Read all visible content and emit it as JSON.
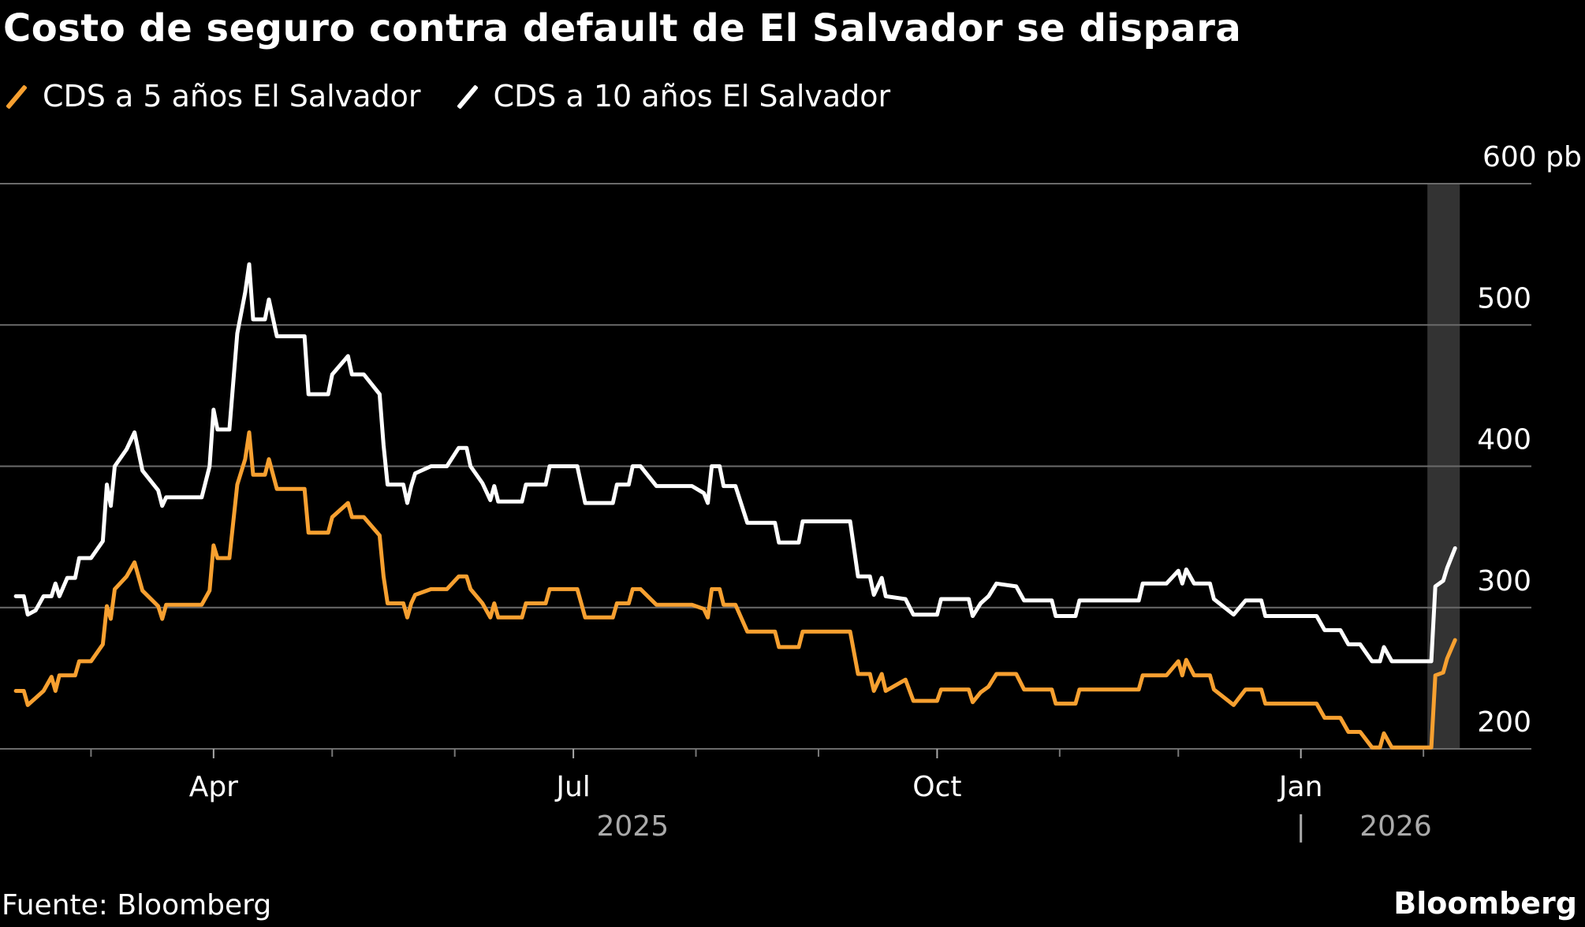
{
  "title": "Costo de seguro contra default de El Salvador se dispara",
  "legend": [
    {
      "label": "CDS a 5 años El Salvador",
      "color": "#f7a030"
    },
    {
      "label": "CDS a 10 años El Salvador",
      "color": "#ffffff"
    }
  ],
  "source": "Fuente: Bloomberg",
  "brand": "Bloomberg",
  "chart_data": {
    "type": "line",
    "title": "Costo de seguro contra default de El Salvador se dispara",
    "y_unit": "pb",
    "ylim": [
      200,
      600
    ],
    "y_ticks": [
      200,
      300,
      400,
      500,
      600
    ],
    "y_tick_labels": [
      "200",
      "300",
      "400",
      "500",
      "600 pb"
    ],
    "y_axis_position": "right",
    "grid": true,
    "legend_position": "top-left",
    "x_range": [
      "2025-02-10",
      "2026-02-09"
    ],
    "x_major_ticks": [
      {
        "date": "2025-04-01",
        "label": "Apr"
      },
      {
        "date": "2025-07-01",
        "label": "Jul"
      },
      {
        "date": "2025-10-01",
        "label": "Oct"
      },
      {
        "date": "2026-01-01",
        "label": "Jan"
      }
    ],
    "x_minor_ticks": [
      "2025-03-01",
      "2025-05-01",
      "2025-06-01",
      "2025-08-01",
      "2025-09-01",
      "2025-11-01",
      "2025-12-01",
      "2026-02-01"
    ],
    "year_labels": [
      {
        "date": "2025-07-16",
        "label": "2025"
      },
      {
        "date": "2026-01-25",
        "label": "2026",
        "separator": "|"
      }
    ],
    "highlight_range": [
      "2026-02-02",
      "2026-02-09"
    ],
    "highlight_color": "#333333",
    "x": [
      "2025-02-10",
      "2025-02-12",
      "2025-02-13",
      "2025-02-15",
      "2025-02-17",
      "2025-02-19",
      "2025-02-20",
      "2025-02-21",
      "2025-02-23",
      "2025-02-25",
      "2025-02-26",
      "2025-03-01",
      "2025-03-04",
      "2025-03-05",
      "2025-03-06",
      "2025-03-07",
      "2025-03-10",
      "2025-03-12",
      "2025-03-14",
      "2025-03-18",
      "2025-03-19",
      "2025-03-20",
      "2025-03-29",
      "2025-03-31",
      "2025-04-01",
      "2025-04-02",
      "2025-04-05",
      "2025-04-07",
      "2025-04-09",
      "2025-04-10",
      "2025-04-11",
      "2025-04-14",
      "2025-04-15",
      "2025-04-17",
      "2025-04-24",
      "2025-04-25",
      "2025-04-30",
      "2025-05-01",
      "2025-05-05",
      "2025-05-06",
      "2025-05-09",
      "2025-05-13",
      "2025-05-14",
      "2025-05-15",
      "2025-05-19",
      "2025-05-20",
      "2025-05-21",
      "2025-05-22",
      "2025-05-26",
      "2025-05-30",
      "2025-06-02",
      "2025-06-04",
      "2025-06-05",
      "2025-06-08",
      "2025-06-10",
      "2025-06-11",
      "2025-06-12",
      "2025-06-18",
      "2025-06-19",
      "2025-06-24",
      "2025-06-25",
      "2025-06-30",
      "2025-07-02",
      "2025-07-04",
      "2025-07-11",
      "2025-07-12",
      "2025-07-15",
      "2025-07-16",
      "2025-07-18",
      "2025-07-22",
      "2025-07-31",
      "2025-08-03",
      "2025-08-04",
      "2025-08-05",
      "2025-08-07",
      "2025-08-08",
      "2025-08-11",
      "2025-08-14",
      "2025-08-21",
      "2025-08-22",
      "2025-08-27",
      "2025-08-28",
      "2025-09-09",
      "2025-09-11",
      "2025-09-14",
      "2025-09-15",
      "2025-09-17",
      "2025-09-18",
      "2025-09-23",
      "2025-09-25",
      "2025-10-01",
      "2025-10-02",
      "2025-10-09",
      "2025-10-10",
      "2025-10-12",
      "2025-10-14",
      "2025-10-16",
      "2025-10-21",
      "2025-10-23",
      "2025-10-30",
      "2025-10-31",
      "2025-11-05",
      "2025-11-06",
      "2025-11-21",
      "2025-11-22",
      "2025-11-28",
      "2025-12-01",
      "2025-12-02",
      "2025-12-03",
      "2025-12-05",
      "2025-12-09",
      "2025-12-10",
      "2025-12-15",
      "2025-12-18",
      "2025-12-22",
      "2025-12-23",
      "2026-01-05",
      "2026-01-07",
      "2026-01-11",
      "2026-01-13",
      "2026-01-16",
      "2026-01-19",
      "2026-01-21",
      "2026-01-22",
      "2026-01-24",
      "2026-02-03",
      "2026-02-04",
      "2026-02-06",
      "2026-02-07",
      "2026-02-09"
    ],
    "series": [
      {
        "name": "CDS a 5 años El Salvador",
        "color": "#f7a030",
        "values": [
          241,
          241,
          231,
          236,
          241,
          251,
          241,
          252,
          252,
          252,
          262,
          262,
          274,
          301,
          292,
          313,
          322,
          332,
          312,
          301,
          292,
          302,
          302,
          312,
          344,
          335,
          335,
          387,
          405,
          424,
          394,
          394,
          405,
          384,
          384,
          353,
          353,
          364,
          374,
          364,
          364,
          351,
          322,
          303,
          303,
          293,
          303,
          309,
          313,
          313,
          322,
          322,
          313,
          303,
          293,
          303,
          293,
          293,
          303,
          303,
          313,
          313,
          313,
          293,
          293,
          303,
          303,
          313,
          313,
          302,
          302,
          299,
          293,
          313,
          313,
          302,
          302,
          283,
          283,
          272,
          272,
          283,
          283,
          253,
          253,
          241,
          253,
          241,
          249,
          234,
          234,
          242,
          242,
          233,
          240,
          244,
          253,
          253,
          242,
          242,
          232,
          232,
          242,
          242,
          252,
          252,
          262,
          252,
          263,
          252,
          252,
          242,
          231,
          242,
          242,
          232,
          232,
          222,
          222,
          212,
          212,
          201,
          201,
          211,
          201,
          201,
          252,
          254,
          264,
          277
        ]
      },
      {
        "name": "CDS a 10 años El Salvador",
        "color": "#ffffff",
        "values": [
          308,
          308,
          295,
          298,
          308,
          308,
          317,
          308,
          321,
          321,
          335,
          335,
          347,
          387,
          372,
          400,
          412,
          424,
          397,
          383,
          372,
          378,
          378,
          400,
          440,
          426,
          426,
          494,
          523,
          543,
          504,
          504,
          518,
          492,
          492,
          451,
          451,
          465,
          478,
          465,
          465,
          451,
          415,
          387,
          387,
          374,
          386,
          395,
          400,
          400,
          413,
          413,
          400,
          388,
          376,
          386,
          375,
          375,
          387,
          387,
          400,
          400,
          400,
          374,
          374,
          387,
          387,
          400,
          400,
          386,
          386,
          381,
          374,
          400,
          400,
          386,
          386,
          360,
          360,
          346,
          346,
          361,
          361,
          322,
          322,
          309,
          321,
          308,
          306,
          295,
          295,
          306,
          306,
          294,
          303,
          308,
          317,
          315,
          305,
          305,
          294,
          294,
          305,
          305,
          317,
          317,
          326,
          317,
          327,
          317,
          317,
          306,
          295,
          305,
          305,
          294,
          294,
          284,
          284,
          274,
          274,
          262,
          262,
          272,
          262,
          262,
          315,
          319,
          328,
          342
        ]
      }
    ]
  }
}
